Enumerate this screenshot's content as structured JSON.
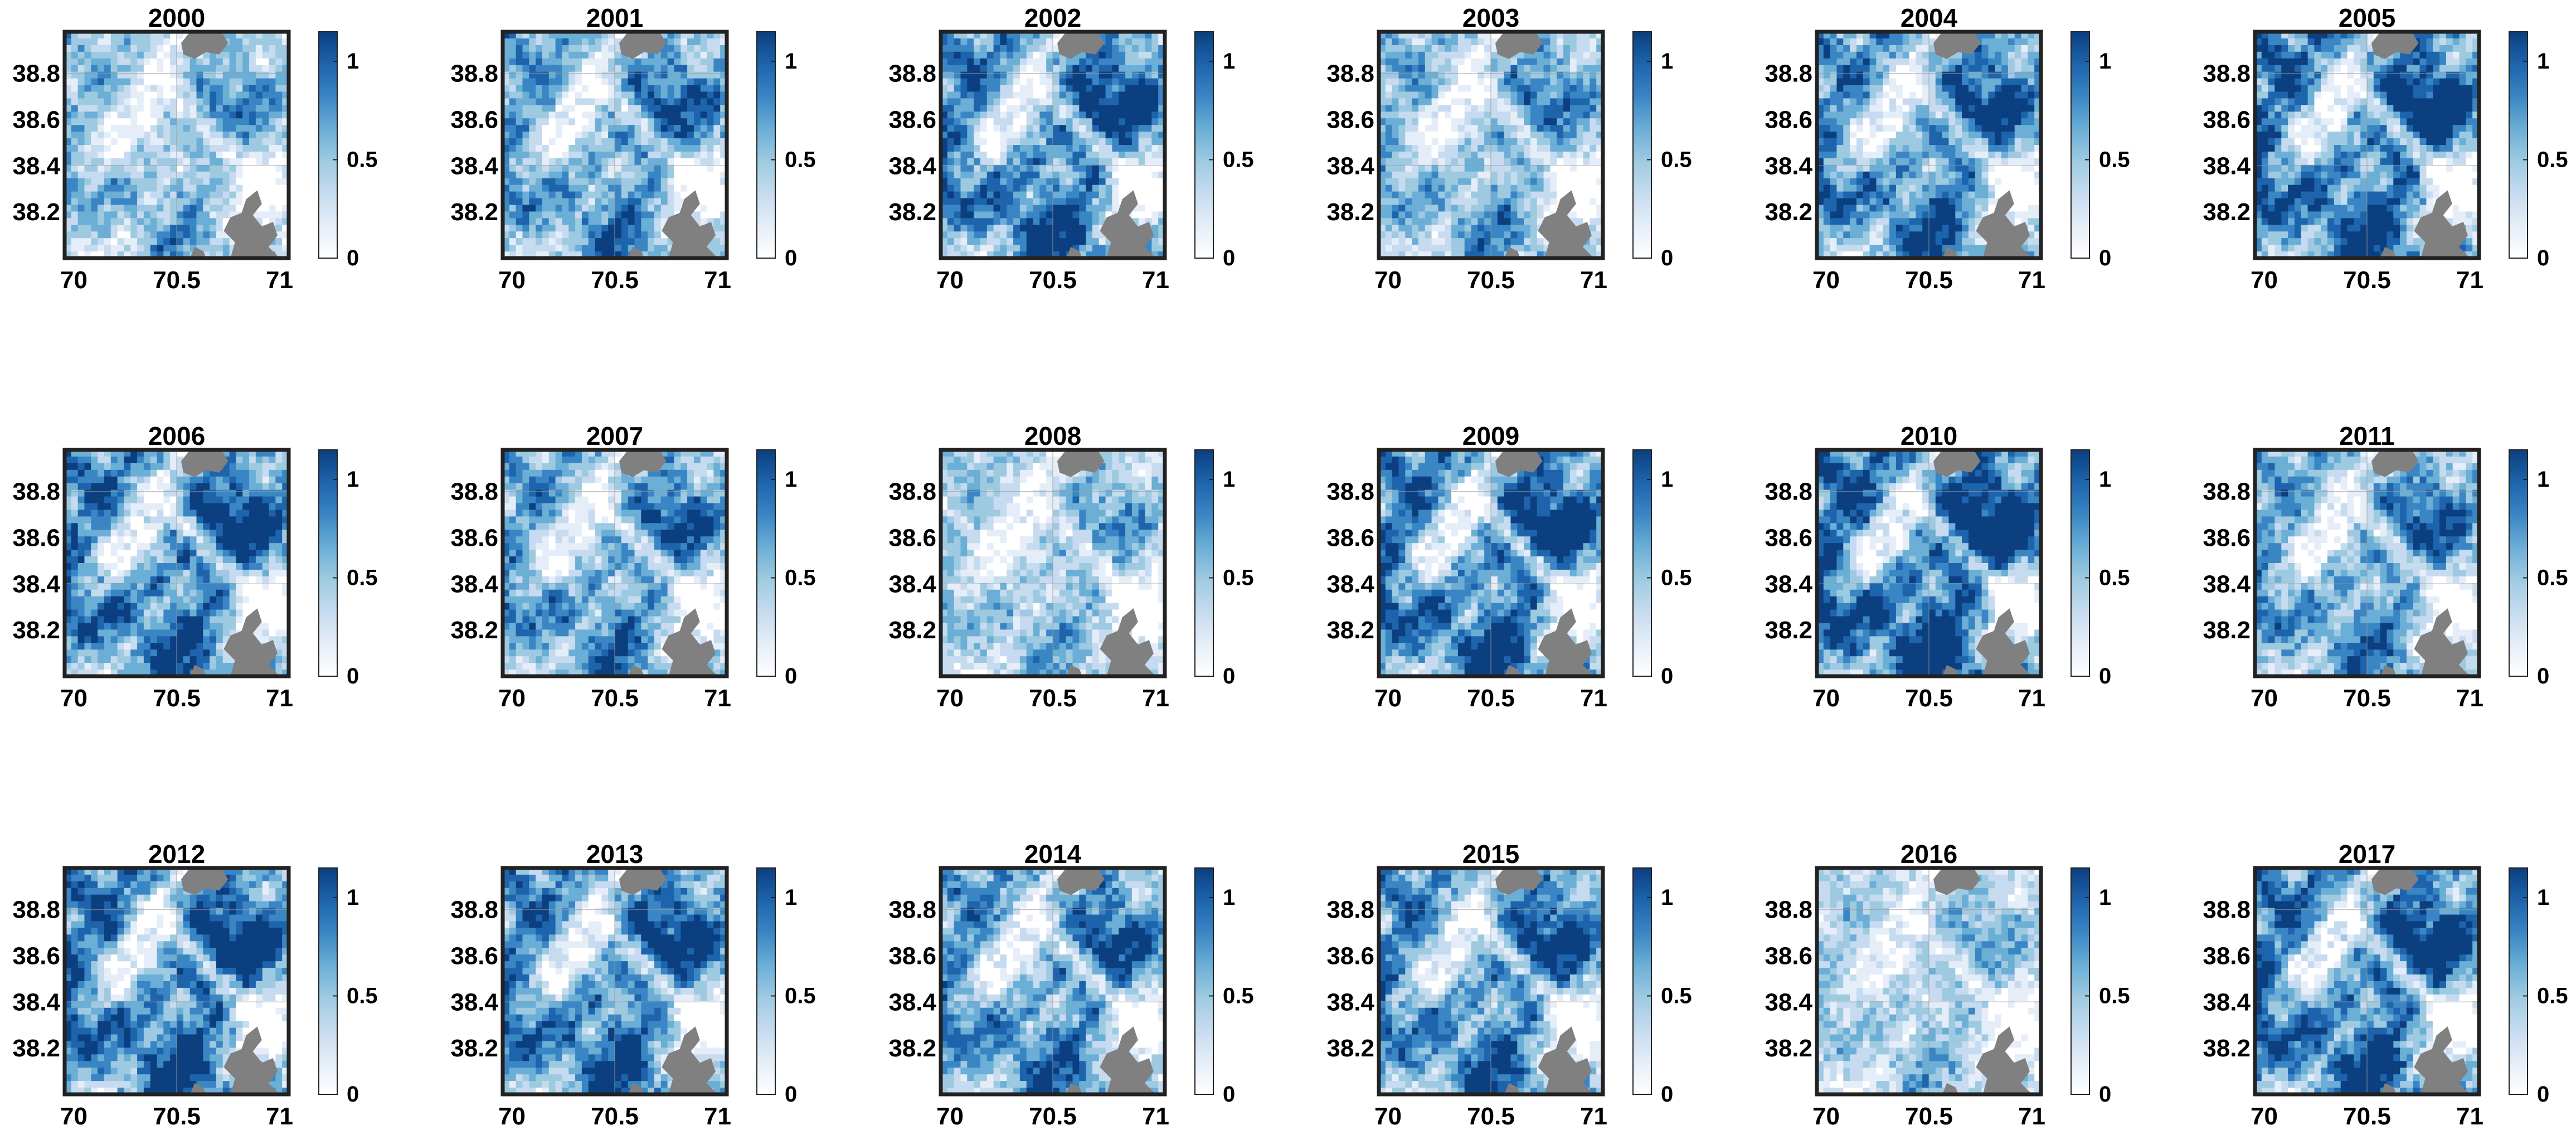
{
  "figure": {
    "layout": {
      "rows": 3,
      "cols": 6
    },
    "colorbar": {
      "colormap_stops": [
        "#ffffff",
        "#e5eef8",
        "#c6dbef",
        "#9ecae1",
        "#6baed6",
        "#3a86c4",
        "#1d64ac",
        "#0b3f80"
      ],
      "ticks": [
        "0",
        "0.5",
        "1"
      ],
      "tick_values": [
        0,
        0.5,
        1
      ],
      "range": [
        0,
        1.15
      ]
    },
    "masked_color": "#808080",
    "frame_color": "#222222",
    "text_color": "#000000"
  },
  "chart_data": [
    {
      "type": "heatmap",
      "title": "2000",
      "intensity": 0.55,
      "xticks": [
        "70",
        "70.5",
        "71"
      ],
      "xtick_values": [
        70,
        70.5,
        71
      ],
      "yticks": [
        "38.2",
        "38.4",
        "38.6",
        "38.8"
      ],
      "ytick_values": [
        38.2,
        38.4,
        38.6,
        38.8
      ],
      "xlim": [
        70,
        71
      ],
      "ylim": [
        38.0,
        38.98
      ],
      "clim": [
        0,
        1.15
      ],
      "grid": true
    },
    {
      "type": "heatmap",
      "title": "2001",
      "intensity": 0.7,
      "xticks": [
        "70",
        "70.5",
        "71"
      ],
      "xtick_values": [
        70,
        70.5,
        71
      ],
      "yticks": [
        "38.2",
        "38.4",
        "38.6",
        "38.8"
      ],
      "ytick_values": [
        38.2,
        38.4,
        38.6,
        38.8
      ],
      "xlim": [
        70,
        71
      ],
      "ylim": [
        38.0,
        38.98
      ],
      "clim": [
        0,
        1.15
      ],
      "grid": true
    },
    {
      "type": "heatmap",
      "title": "2002",
      "intensity": 0.85,
      "xticks": [
        "70",
        "70.5",
        "71"
      ],
      "xtick_values": [
        70,
        70.5,
        71
      ],
      "yticks": [
        "38.2",
        "38.4",
        "38.6",
        "38.8"
      ],
      "ytick_values": [
        38.2,
        38.4,
        38.6,
        38.8
      ],
      "xlim": [
        70,
        71
      ],
      "ylim": [
        38.0,
        38.98
      ],
      "clim": [
        0,
        1.15
      ],
      "grid": true
    },
    {
      "type": "heatmap",
      "title": "2003",
      "intensity": 0.6,
      "xticks": [
        "70",
        "70.5",
        "71"
      ],
      "xtick_values": [
        70,
        70.5,
        71
      ],
      "yticks": [
        "38.2",
        "38.4",
        "38.6",
        "38.8"
      ],
      "ytick_values": [
        38.2,
        38.4,
        38.6,
        38.8
      ],
      "xlim": [
        70,
        71
      ],
      "ylim": [
        38.0,
        38.98
      ],
      "clim": [
        0,
        1.15
      ],
      "grid": true
    },
    {
      "type": "heatmap",
      "title": "2004",
      "intensity": 0.8,
      "xticks": [
        "70",
        "70.5",
        "71"
      ],
      "xtick_values": [
        70,
        70.5,
        71
      ],
      "yticks": [
        "38.2",
        "38.4",
        "38.6",
        "38.8"
      ],
      "ytick_values": [
        38.2,
        38.4,
        38.6,
        38.8
      ],
      "xlim": [
        70,
        71
      ],
      "ylim": [
        38.0,
        38.98
      ],
      "clim": [
        0,
        1.15
      ],
      "grid": true
    },
    {
      "type": "heatmap",
      "title": "2005",
      "intensity": 0.9,
      "xticks": [
        "70",
        "70.5",
        "71"
      ],
      "xtick_values": [
        70,
        70.5,
        71
      ],
      "yticks": [
        "38.2",
        "38.4",
        "38.6",
        "38.8"
      ],
      "ytick_values": [
        38.2,
        38.4,
        38.6,
        38.8
      ],
      "xlim": [
        70,
        71
      ],
      "ylim": [
        38.0,
        38.98
      ],
      "clim": [
        0,
        1.15
      ],
      "grid": true
    },
    {
      "type": "heatmap",
      "title": "2006",
      "intensity": 0.85,
      "xticks": [
        "70",
        "70.5",
        "71"
      ],
      "xtick_values": [
        70,
        70.5,
        71
      ],
      "yticks": [
        "38.2",
        "38.4",
        "38.6",
        "38.8"
      ],
      "ytick_values": [
        38.2,
        38.4,
        38.6,
        38.8
      ],
      "xlim": [
        70,
        71
      ],
      "ylim": [
        38.0,
        38.98
      ],
      "clim": [
        0,
        1.15
      ],
      "grid": true
    },
    {
      "type": "heatmap",
      "title": "2007",
      "intensity": 0.7,
      "xticks": [
        "70",
        "70.5",
        "71"
      ],
      "xtick_values": [
        70,
        70.5,
        71
      ],
      "yticks": [
        "38.2",
        "38.4",
        "38.6",
        "38.8"
      ],
      "ytick_values": [
        38.2,
        38.4,
        38.6,
        38.8
      ],
      "xlim": [
        70,
        71
      ],
      "ylim": [
        38.0,
        38.98
      ],
      "clim": [
        0,
        1.15
      ],
      "grid": true
    },
    {
      "type": "heatmap",
      "title": "2008",
      "intensity": 0.5,
      "xticks": [
        "70",
        "70.5",
        "71"
      ],
      "xtick_values": [
        70,
        70.5,
        71
      ],
      "yticks": [
        "38.2",
        "38.4",
        "38.6",
        "38.8"
      ],
      "ytick_values": [
        38.2,
        38.4,
        38.6,
        38.8
      ],
      "xlim": [
        70,
        71
      ],
      "ylim": [
        38.0,
        38.98
      ],
      "clim": [
        0,
        1.15
      ],
      "grid": true
    },
    {
      "type": "heatmap",
      "title": "2009",
      "intensity": 0.9,
      "xticks": [
        "70",
        "70.5",
        "71"
      ],
      "xtick_values": [
        70,
        70.5,
        71
      ],
      "yticks": [
        "38.2",
        "38.4",
        "38.6",
        "38.8"
      ],
      "ytick_values": [
        38.2,
        38.4,
        38.6,
        38.8
      ],
      "xlim": [
        70,
        71
      ],
      "ylim": [
        38.0,
        38.98
      ],
      "clim": [
        0,
        1.15
      ],
      "grid": true
    },
    {
      "type": "heatmap",
      "title": "2010",
      "intensity": 1.0,
      "xticks": [
        "70",
        "70.5",
        "71"
      ],
      "xtick_values": [
        70,
        70.5,
        71
      ],
      "yticks": [
        "38.2",
        "38.4",
        "38.6",
        "38.8"
      ],
      "ytick_values": [
        38.2,
        38.4,
        38.6,
        38.8
      ],
      "xlim": [
        70,
        71
      ],
      "ylim": [
        38.0,
        38.98
      ],
      "clim": [
        0,
        1.15
      ],
      "grid": true
    },
    {
      "type": "heatmap",
      "title": "2011",
      "intensity": 0.7,
      "xticks": [
        "70",
        "70.5",
        "71"
      ],
      "xtick_values": [
        70,
        70.5,
        71
      ],
      "yticks": [
        "38.2",
        "38.4",
        "38.6",
        "38.8"
      ],
      "ytick_values": [
        38.2,
        38.4,
        38.6,
        38.8
      ],
      "xlim": [
        70,
        71
      ],
      "ylim": [
        38.0,
        38.98
      ],
      "clim": [
        0,
        1.15
      ],
      "grid": true
    },
    {
      "type": "heatmap",
      "title": "2012",
      "intensity": 0.9,
      "xticks": [
        "70",
        "70.5",
        "71"
      ],
      "xtick_values": [
        70,
        70.5,
        71
      ],
      "yticks": [
        "38.2",
        "38.4",
        "38.6",
        "38.8"
      ],
      "ytick_values": [
        38.2,
        38.4,
        38.6,
        38.8
      ],
      "xlim": [
        70,
        71
      ],
      "ylim": [
        38.0,
        38.98
      ],
      "clim": [
        0,
        1.15
      ],
      "grid": true
    },
    {
      "type": "heatmap",
      "title": "2013",
      "intensity": 0.85,
      "xticks": [
        "70",
        "70.5",
        "71"
      ],
      "xtick_values": [
        70,
        70.5,
        71
      ],
      "yticks": [
        "38.2",
        "38.4",
        "38.6",
        "38.8"
      ],
      "ytick_values": [
        38.2,
        38.4,
        38.6,
        38.8
      ],
      "xlim": [
        70,
        71
      ],
      "ylim": [
        38.0,
        38.98
      ],
      "clim": [
        0,
        1.15
      ],
      "grid": true
    },
    {
      "type": "heatmap",
      "title": "2014",
      "intensity": 0.75,
      "xticks": [
        "70",
        "70.5",
        "71"
      ],
      "xtick_values": [
        70,
        70.5,
        71
      ],
      "yticks": [
        "38.2",
        "38.4",
        "38.6",
        "38.8"
      ],
      "ytick_values": [
        38.2,
        38.4,
        38.6,
        38.8
      ],
      "xlim": [
        70,
        71
      ],
      "ylim": [
        38.0,
        38.98
      ],
      "clim": [
        0,
        1.15
      ],
      "grid": true
    },
    {
      "type": "heatmap",
      "title": "2015",
      "intensity": 0.8,
      "xticks": [
        "70",
        "70.5",
        "71"
      ],
      "xtick_values": [
        70,
        70.5,
        71
      ],
      "yticks": [
        "38.2",
        "38.4",
        "38.6",
        "38.8"
      ],
      "ytick_values": [
        38.2,
        38.4,
        38.6,
        38.8
      ],
      "xlim": [
        70,
        71
      ],
      "ylim": [
        38.0,
        38.98
      ],
      "clim": [
        0,
        1.15
      ],
      "grid": true
    },
    {
      "type": "heatmap",
      "title": "2016",
      "intensity": 0.45,
      "xticks": [
        "70",
        "70.5",
        "71"
      ],
      "xtick_values": [
        70,
        70.5,
        71
      ],
      "yticks": [
        "38.2",
        "38.4",
        "38.6",
        "38.8"
      ],
      "ytick_values": [
        38.2,
        38.4,
        38.6,
        38.8
      ],
      "xlim": [
        70,
        71
      ],
      "ylim": [
        38.0,
        38.98
      ],
      "clim": [
        0,
        1.15
      ],
      "grid": true
    },
    {
      "type": "heatmap",
      "title": "2017",
      "intensity": 0.9,
      "xticks": [
        "70",
        "70.5",
        "71"
      ],
      "xtick_values": [
        70,
        70.5,
        71
      ],
      "yticks": [
        "38.2",
        "38.4",
        "38.6",
        "38.8"
      ],
      "ytick_values": [
        38.2,
        38.4,
        38.6,
        38.8
      ],
      "xlim": [
        70,
        71
      ],
      "ylim": [
        38.0,
        38.98
      ],
      "clim": [
        0,
        1.15
      ],
      "grid": true
    }
  ]
}
